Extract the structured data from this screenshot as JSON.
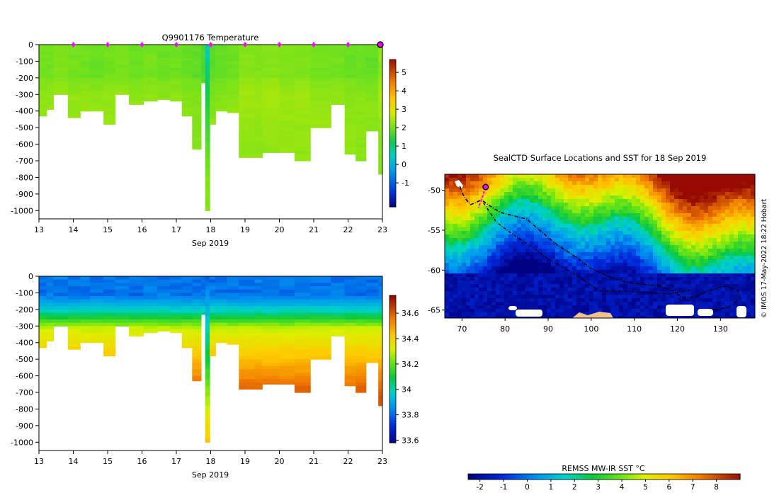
{
  "chart_data": [
    {
      "id": "temperature",
      "type": "heatmap",
      "title": "Q9901176  Temperature",
      "xlabel": "Sep 2019",
      "xlim": [
        13,
        23
      ],
      "ylim": [
        -1050,
        0
      ],
      "x_ticks": [
        "13",
        "14",
        "15",
        "16",
        "17",
        "18",
        "19",
        "20",
        "21",
        "22",
        "23"
      ],
      "y_ticks": [
        "0",
        "-100",
        "-200",
        "-300",
        "-400",
        "-500",
        "-600",
        "-700",
        "-800",
        "-900",
        "-1000"
      ],
      "y_tick_values": [
        0,
        -100,
        -200,
        -300,
        -400,
        -500,
        -600,
        -700,
        -800,
        -900,
        -1000
      ],
      "colorbar": {
        "min": -2.3,
        "max": 5.7,
        "ticks": [
          "5",
          "4",
          "3",
          "2",
          "1",
          "0",
          "-1"
        ],
        "tick_values": [
          5,
          4,
          3,
          2,
          1,
          0,
          -1
        ]
      },
      "profile_day_markers": [
        14,
        15,
        16,
        17,
        18,
        19,
        20,
        21,
        22
      ],
      "current_marker_day": 23,
      "profiles": [
        {
          "t": 13.0,
          "w": 0.22,
          "depth": 430,
          "base": 2.0,
          "deep": 1.2
        },
        {
          "t": 13.22,
          "w": 0.2,
          "depth": 390,
          "base": 2.0,
          "deep": 1.3
        },
        {
          "t": 13.42,
          "w": 0.42,
          "depth": 300,
          "base": 2.1,
          "deep": 1.6
        },
        {
          "t": 13.84,
          "w": 0.36,
          "depth": 440,
          "base": 2.0,
          "deep": 1.3
        },
        {
          "t": 14.2,
          "w": 0.28,
          "depth": 400,
          "base": 2.0,
          "deep": 1.4
        },
        {
          "t": 14.48,
          "w": 0.4,
          "depth": 400,
          "base": 1.95,
          "deep": 1.5
        },
        {
          "t": 14.88,
          "w": 0.34,
          "depth": 480,
          "base": 2.0,
          "deep": 1.4
        },
        {
          "t": 15.22,
          "w": 0.4,
          "depth": 300,
          "base": 2.05,
          "deep": 1.6
        },
        {
          "t": 15.62,
          "w": 0.42,
          "depth": 360,
          "base": 1.95,
          "deep": 1.5
        },
        {
          "t": 16.04,
          "w": 0.4,
          "depth": 340,
          "base": 2.0,
          "deep": 1.5
        },
        {
          "t": 16.44,
          "w": 0.38,
          "depth": 330,
          "base": 1.95,
          "deep": 1.55
        },
        {
          "t": 16.82,
          "w": 0.34,
          "depth": 340,
          "base": 2.0,
          "deep": 1.6
        },
        {
          "t": 17.16,
          "w": 0.3,
          "depth": 430,
          "base": 1.9,
          "deep": 1.3
        },
        {
          "t": 17.46,
          "w": 0.26,
          "depth": 630,
          "base": 1.85,
          "deep": 1.2
        },
        {
          "t": 17.72,
          "w": 0.12,
          "depth": 230,
          "base": 1.7,
          "deep": 1.4
        },
        {
          "t": 17.84,
          "w": 0.13,
          "depth": 1000,
          "base": 0.6,
          "deep": 1.5
        },
        {
          "t": 17.97,
          "w": 0.17,
          "depth": 480,
          "base": 1.8,
          "deep": 1.4
        },
        {
          "t": 18.14,
          "w": 0.34,
          "depth": 400,
          "base": 1.9,
          "deep": 1.4
        },
        {
          "t": 18.48,
          "w": 0.34,
          "depth": 410,
          "base": 1.95,
          "deep": 1.4
        },
        {
          "t": 18.82,
          "w": 0.46,
          "depth": 680,
          "base": 2.15,
          "deep": 1.25
        },
        {
          "t": 19.28,
          "w": 0.22,
          "depth": 680,
          "base": 2.1,
          "deep": 1.25
        },
        {
          "t": 19.5,
          "w": 0.5,
          "depth": 650,
          "base": 2.15,
          "deep": 1.3
        },
        {
          "t": 20.0,
          "w": 0.44,
          "depth": 650,
          "base": 2.1,
          "deep": 1.3
        },
        {
          "t": 20.44,
          "w": 0.46,
          "depth": 700,
          "base": 2.1,
          "deep": 1.3
        },
        {
          "t": 20.9,
          "w": 0.6,
          "depth": 500,
          "base": 2.0,
          "deep": 1.4
        },
        {
          "t": 21.5,
          "w": 0.4,
          "depth": 360,
          "base": 2.0,
          "deep": 1.5
        },
        {
          "t": 21.9,
          "w": 0.32,
          "depth": 660,
          "base": 1.95,
          "deep": 1.3
        },
        {
          "t": 22.22,
          "w": 0.3,
          "depth": 700,
          "base": 1.95,
          "deep": 1.25
        },
        {
          "t": 22.52,
          "w": 0.36,
          "depth": 520,
          "base": 1.9,
          "deep": 1.3
        },
        {
          "t": 22.88,
          "w": 0.2,
          "depth": 780,
          "base": 2.2,
          "deep": 1.2
        }
      ]
    },
    {
      "id": "salinity",
      "type": "heatmap",
      "title": "",
      "xlabel": "Sep 2019",
      "xlim": [
        13,
        23
      ],
      "ylim": [
        -1050,
        0
      ],
      "x_ticks": [
        "13",
        "14",
        "15",
        "16",
        "17",
        "18",
        "19",
        "20",
        "21",
        "22",
        "23"
      ],
      "y_ticks": [
        "0",
        "-100",
        "-200",
        "-300",
        "-400",
        "-500",
        "-600",
        "-700",
        "-800",
        "-900",
        "-1000"
      ],
      "y_tick_values": [
        0,
        -100,
        -200,
        -300,
        -400,
        -500,
        -600,
        -700,
        -800,
        -900,
        -1000
      ],
      "colorbar": {
        "min": 33.58,
        "max": 34.74,
        "ticks": [
          "34.6",
          "34.4",
          "34.2",
          "34",
          "33.8",
          "33.6"
        ],
        "tick_values": [
          34.6,
          34.4,
          34.2,
          34.0,
          33.8,
          33.6
        ]
      },
      "profiles_ref": "temperature"
    },
    {
      "id": "map",
      "type": "heatmap",
      "title": "SealCTD Surface Locations and SST for 18 Sep 2019",
      "xlim": [
        66,
        138
      ],
      "ylim": [
        -66,
        -48
      ],
      "x_ticks": [
        "70",
        "80",
        "90",
        "100",
        "110",
        "120",
        "130"
      ],
      "x_tick_values": [
        70,
        80,
        90,
        100,
        110,
        120,
        130
      ],
      "y_ticks": [
        "-50",
        "-55",
        "-60",
        "-65"
      ],
      "y_tick_values": [
        -50,
        -55,
        -60,
        -65
      ],
      "credit": "© IMOS 17-May-2022 18:22 Hobart",
      "current_position": [
        75.5,
        -49.6
      ],
      "colorbar": {
        "label": "REMSS MW-IR SST °C",
        "min": -2.5,
        "max": 9.0,
        "ticks": [
          "-2",
          "-1",
          "0",
          "1",
          "2",
          "3",
          "4",
          "5",
          "6",
          "7",
          "8"
        ],
        "tick_values": [
          -2,
          -1,
          0,
          1,
          2,
          3,
          4,
          5,
          6,
          7,
          8
        ]
      },
      "track_recent": [
        [
          75.5,
          -49.6
        ],
        [
          75.1,
          -50.2
        ],
        [
          74.8,
          -50.8
        ],
        [
          74.3,
          -51.5
        ],
        [
          73.8,
          -52.2
        ]
      ],
      "track_older": [
        [
          69.5,
          -49.5
        ],
        [
          70.2,
          -50.5
        ],
        [
          71.0,
          -51.2
        ],
        [
          72.0,
          -51.8
        ],
        [
          73.0,
          -51.6
        ],
        [
          74.5,
          -51.2
        ],
        [
          76.0,
          -51.8
        ],
        [
          79.0,
          -52.8
        ],
        [
          82.0,
          -53.2
        ],
        [
          85.0,
          -53.6
        ],
        [
          88.0,
          -55.0
        ],
        [
          92.0,
          -56.8
        ],
        [
          96.0,
          -58.2
        ],
        [
          100.0,
          -59.8
        ],
        [
          104.0,
          -60.8
        ],
        [
          108.0,
          -61.5
        ],
        [
          112.0,
          -61.8
        ],
        [
          116.0,
          -62.0
        ],
        [
          119.0,
          -62.6
        ],
        [
          121.0,
          -63.4
        ],
        [
          124.0,
          -63.4
        ],
        [
          127.0,
          -62.6
        ],
        [
          131.0,
          -62.0
        ],
        [
          134.0,
          -62.5
        ],
        [
          134.5,
          -63.6
        ],
        [
          132.0,
          -64.6
        ],
        [
          129.0,
          -65.0
        ],
        [
          127.5,
          -64.8
        ]
      ],
      "track_outbound": [
        [
          75.0,
          -51.6
        ],
        [
          78.0,
          -54.0
        ],
        [
          82.0,
          -55.6
        ],
        [
          86.0,
          -57.0
        ],
        [
          90.0,
          -58.6
        ],
        [
          94.0,
          -59.8
        ],
        [
          98.0,
          -61.2
        ],
        [
          102.0,
          -62.6
        ],
        [
          106.0,
          -62.6
        ],
        [
          112.0,
          -62.8
        ],
        [
          118.0,
          -63.0
        ],
        [
          124.0,
          -62.4
        ]
      ]
    }
  ]
}
